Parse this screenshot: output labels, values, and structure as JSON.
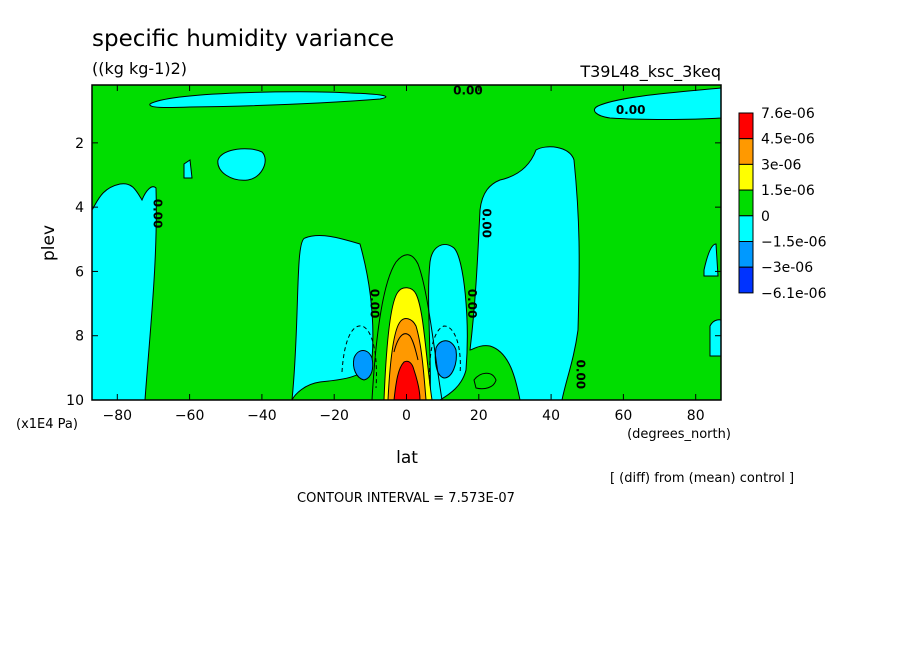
{
  "chart_data": {
    "type": "contour",
    "title": "specific humidity variance",
    "subtitle": "((kg kg-1)2)",
    "run_label": "T39L48_ksc_3keq",
    "xlabel": "lat",
    "xunit": "(degrees_north)",
    "ylabel": "plev",
    "yunit": "(x1E4 Pa)",
    "xlim": [
      -87,
      87
    ],
    "ylim": [
      10,
      0.2
    ],
    "xticks": [
      -80,
      -60,
      -40,
      -20,
      0,
      20,
      40,
      60,
      80
    ],
    "yticks": [
      2,
      4,
      6,
      8,
      10
    ],
    "contour_labels": [
      {
        "text": "0.00",
        "lat": 17,
        "plev": 0.5
      },
      {
        "text": "0.00",
        "lat": 62,
        "plev": 1.1
      },
      {
        "text": "0.00",
        "lat": -70,
        "plev": 4.2
      },
      {
        "text": "0.00",
        "lat": 21,
        "plev": 4.5
      },
      {
        "text": "0.00",
        "lat": -10,
        "plev": 7.0
      },
      {
        "text": "0.00",
        "lat": 17,
        "plev": 7.0
      },
      {
        "text": "0.00",
        "lat": 47,
        "plev": 9.2
      }
    ],
    "colorbar": {
      "levels": [
        "7.6e-06",
        "4.5e-06",
        "3e-06",
        "1.5e-06",
        "0",
        "-1.5e-06",
        "-3e-06",
        "-6.1e-06"
      ],
      "colors": [
        "#ff0000",
        "#ff9900",
        "#ffff00",
        "#00dd00",
        "#00ffff",
        "#0099ff",
        "#0033ff"
      ]
    },
    "contour_interval": "CONTOUR INTERVAL = 7.573E-07",
    "note": "[ (diff) from (mean) control ]",
    "fill_colors": {
      "background": "#00dd00",
      "neg1": "#00ffff",
      "neg2": "#0099ff",
      "pos1": "#ffff00",
      "pos2": "#ff9900",
      "pos3": "#ff0000"
    }
  }
}
